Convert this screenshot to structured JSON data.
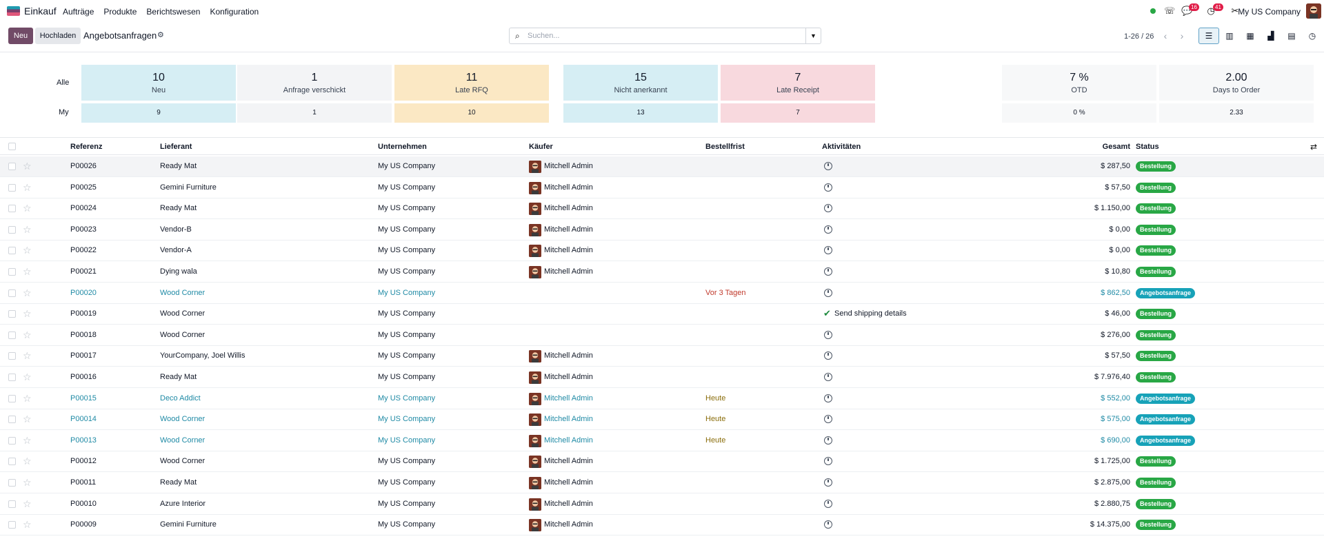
{
  "navbar": {
    "app_name": "Einkauf",
    "menu": [
      "Aufträge",
      "Produkte",
      "Berichtswesen",
      "Konfiguration"
    ],
    "messages_badge": "16",
    "activities_badge": "41",
    "company": "My US Company"
  },
  "control": {
    "new_label": "Neu",
    "upload_label": "Hochladen",
    "title": "Angebotsanfragen",
    "search_placeholder": "Suchen...",
    "pager": "1-26 / 26"
  },
  "dashboard": {
    "row_all_label": "Alle",
    "row_my_label": "My",
    "tiles": [
      {
        "all": "10",
        "label": "Neu",
        "my": "9",
        "color": "#d6eef4"
      },
      {
        "all": "1",
        "label": "Anfrage verschickt",
        "my": "1",
        "color": "#f3f4f6"
      },
      {
        "all": "11",
        "label": "Late RFQ",
        "my": "10",
        "color": "#fbe8c4"
      },
      {
        "all": "15",
        "label": "Nicht anerkannt",
        "my": "13",
        "color": "#d6eef4"
      },
      {
        "all": "7",
        "label": "Late Receipt",
        "my": "7",
        "color": "#f8d9de"
      }
    ],
    "kpis": [
      {
        "all": "7 %",
        "label": "OTD",
        "my": "0 %"
      },
      {
        "all": "2.00",
        "label": "Days to Order",
        "my": "2.33"
      }
    ]
  },
  "table": {
    "headers": [
      "Referenz",
      "Lieferant",
      "Unternehmen",
      "Käufer",
      "Bestellfrist",
      "Aktivitäten",
      "Gesamt",
      "Status"
    ],
    "rows": [
      {
        "ref": "P00026",
        "vendor": "Ready Mat",
        "company": "My US Company",
        "buyer": "Mitchell Admin",
        "deadline": "",
        "activity": "",
        "total": "$ 287,50",
        "status": "Bestellung",
        "rfq": false
      },
      {
        "ref": "P00025",
        "vendor": "Gemini Furniture",
        "company": "My US Company",
        "buyer": "Mitchell Admin",
        "deadline": "",
        "activity": "",
        "total": "$ 57,50",
        "status": "Bestellung",
        "rfq": false
      },
      {
        "ref": "P00024",
        "vendor": "Ready Mat",
        "company": "My US Company",
        "buyer": "Mitchell Admin",
        "deadline": "",
        "activity": "",
        "total": "$ 1.150,00",
        "status": "Bestellung",
        "rfq": false
      },
      {
        "ref": "P00023",
        "vendor": "Vendor-B",
        "company": "My US Company",
        "buyer": "Mitchell Admin",
        "deadline": "",
        "activity": "",
        "total": "$ 0,00",
        "status": "Bestellung",
        "rfq": false
      },
      {
        "ref": "P00022",
        "vendor": "Vendor-A",
        "company": "My US Company",
        "buyer": "Mitchell Admin",
        "deadline": "",
        "activity": "",
        "total": "$ 0,00",
        "status": "Bestellung",
        "rfq": false
      },
      {
        "ref": "P00021",
        "vendor": "Dying wala",
        "company": "My US Company",
        "buyer": "Mitchell Admin",
        "deadline": "",
        "activity": "",
        "total": "$ 10,80",
        "status": "Bestellung",
        "rfq": false
      },
      {
        "ref": "P00020",
        "vendor": "Wood Corner",
        "company": "My US Company",
        "buyer": "",
        "deadline": "Vor 3 Tagen",
        "activity": "",
        "total": "$ 862,50",
        "status": "Angebotsanfrage",
        "rfq": true
      },
      {
        "ref": "P00019",
        "vendor": "Wood Corner",
        "company": "My US Company",
        "buyer": "",
        "deadline": "",
        "activity": "Send shipping details",
        "total": "$ 46,00",
        "status": "Bestellung",
        "rfq": false
      },
      {
        "ref": "P00018",
        "vendor": "Wood Corner",
        "company": "My US Company",
        "buyer": "",
        "deadline": "",
        "activity": "",
        "total": "$ 276,00",
        "status": "Bestellung",
        "rfq": false
      },
      {
        "ref": "P00017",
        "vendor": "YourCompany, Joel Willis",
        "company": "My US Company",
        "buyer": "Mitchell Admin",
        "deadline": "",
        "activity": "",
        "total": "$ 57,50",
        "status": "Bestellung",
        "rfq": false
      },
      {
        "ref": "P00016",
        "vendor": "Ready Mat",
        "company": "My US Company",
        "buyer": "Mitchell Admin",
        "deadline": "",
        "activity": "",
        "total": "$ 7.976,40",
        "status": "Bestellung",
        "rfq": false
      },
      {
        "ref": "P00015",
        "vendor": "Deco Addict",
        "company": "My US Company",
        "buyer": "Mitchell Admin",
        "deadline": "Heute",
        "activity": "",
        "total": "$ 552,00",
        "status": "Angebotsanfrage",
        "rfq": true
      },
      {
        "ref": "P00014",
        "vendor": "Wood Corner",
        "company": "My US Company",
        "buyer": "Mitchell Admin",
        "deadline": "Heute",
        "activity": "",
        "total": "$ 575,00",
        "status": "Angebotsanfrage",
        "rfq": true
      },
      {
        "ref": "P00013",
        "vendor": "Wood Corner",
        "company": "My US Company",
        "buyer": "Mitchell Admin",
        "deadline": "Heute",
        "activity": "",
        "total": "$ 690,00",
        "status": "Angebotsanfrage",
        "rfq": true
      },
      {
        "ref": "P00012",
        "vendor": "Wood Corner",
        "company": "My US Company",
        "buyer": "Mitchell Admin",
        "deadline": "",
        "activity": "",
        "total": "$ 1.725,00",
        "status": "Bestellung",
        "rfq": false
      },
      {
        "ref": "P00011",
        "vendor": "Ready Mat",
        "company": "My US Company",
        "buyer": "Mitchell Admin",
        "deadline": "",
        "activity": "",
        "total": "$ 2.875,00",
        "status": "Bestellung",
        "rfq": false
      },
      {
        "ref": "P00010",
        "vendor": "Azure Interior",
        "company": "My US Company",
        "buyer": "Mitchell Admin",
        "deadline": "",
        "activity": "",
        "total": "$ 2.880,75",
        "status": "Bestellung",
        "rfq": false
      },
      {
        "ref": "P00009",
        "vendor": "Gemini Furniture",
        "company": "My US Company",
        "buyer": "Mitchell Admin",
        "deadline": "",
        "activity": "",
        "total": "$ 14.375,00",
        "status": "Bestellung",
        "rfq": false
      }
    ]
  },
  "colors": {
    "brand": "#714b67",
    "rfq_text": "#1f8aa5",
    "overdue": "#c0392b",
    "today": "#8a6d0b",
    "status_green": "#28a745",
    "status_blue": "#17a2b8"
  }
}
